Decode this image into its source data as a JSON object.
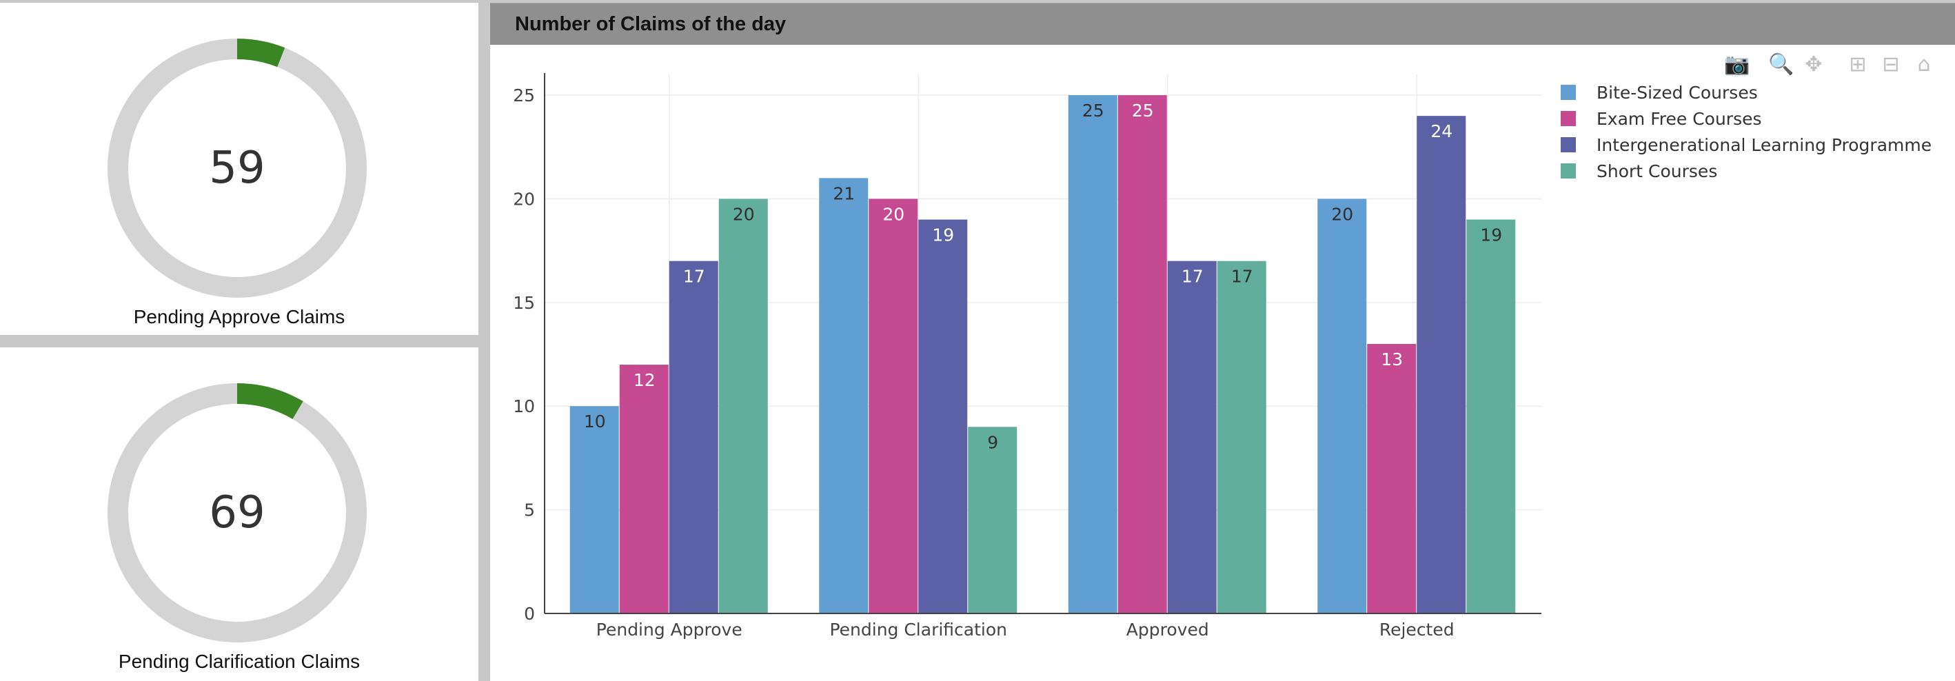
{
  "kpis": [
    {
      "value": "59",
      "label": "Pending Approve Claims",
      "fraction": 0.06
    },
    {
      "value": "69",
      "label": "Pending Clarification Claims",
      "fraction": 0.085
    }
  ],
  "colors": {
    "ring_track": "#d4d4d4",
    "ring_fill": "#3a8524"
  },
  "chart_panel": {
    "title": "Number of Claims of the day"
  },
  "modebar": {
    "icons": [
      "camera-icon",
      "zoom-icon",
      "pan-icon",
      "zoom-in-icon",
      "zoom-out-icon",
      "home-icon"
    ]
  },
  "chart_data": {
    "type": "bar",
    "title": "Number of Claims of the day",
    "xlabel": "",
    "ylabel": "",
    "categories": [
      "Pending Approve",
      "Pending Clarification",
      "Approved",
      "Rejected"
    ],
    "series": [
      {
        "name": "Bite-Sized Courses",
        "color": "#619ed2",
        "label_color": "#2f2f2f",
        "values": [
          10,
          21,
          25,
          20
        ]
      },
      {
        "name": "Exam Free Courses",
        "color": "#c54a91",
        "label_color": "#ffffff",
        "values": [
          12,
          20,
          25,
          13
        ]
      },
      {
        "name": "Intergenerational Learning Programme",
        "color": "#5c60a4",
        "label_color": "#ffffff",
        "values": [
          17,
          19,
          17,
          24
        ]
      },
      {
        "name": "Short Courses",
        "color": "#62ae9c",
        "label_color": "#2f2f2f",
        "values": [
          20,
          9,
          17,
          19
        ]
      }
    ],
    "ylim": [
      0,
      26
    ],
    "yticks": [
      0,
      5,
      10,
      15,
      20,
      25
    ],
    "grid": true,
    "legend": "top-right",
    "data_labels": "inside-top"
  }
}
